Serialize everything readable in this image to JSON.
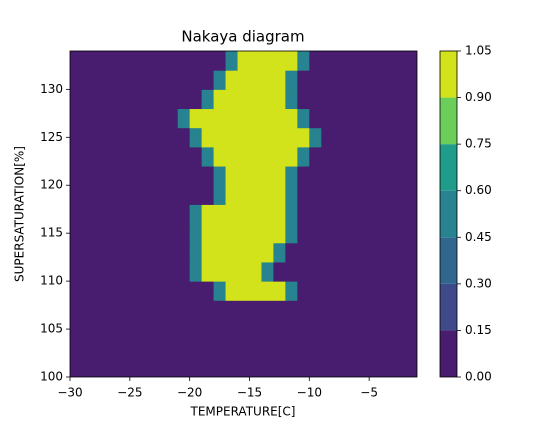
{
  "chart_data": {
    "type": "contour",
    "title": "Nakaya diagram",
    "x_label": "TEMPERATURE[C]",
    "y_label": "SUPERSATURATION[%]",
    "xlim": [
      -30,
      -1
    ],
    "ylim": [
      100,
      134
    ],
    "xticks": [
      {
        "value": -30,
        "label": "−30"
      },
      {
        "value": -25,
        "label": "−25"
      },
      {
        "value": -20,
        "label": "−20"
      },
      {
        "value": -15,
        "label": "−15"
      },
      {
        "value": -10,
        "label": "−10"
      },
      {
        "value": -5,
        "label": "−5"
      }
    ],
    "yticks": [
      100,
      105,
      110,
      115,
      120,
      125,
      130
    ],
    "x": [
      -29.5,
      -28.5,
      -27.5,
      -26.5,
      -25.5,
      -24.5,
      -23.5,
      -22.5,
      -21.5,
      -20.5,
      -19.5,
      -18.5,
      -17.5,
      -16.5,
      -15.5,
      -14.5,
      -13.5,
      -12.5,
      -11.5,
      -10.5,
      -9.5,
      -8.5,
      -7.5,
      -6.5,
      -5.5,
      -4.5,
      -3.5,
      -2.5,
      -1.5
    ],
    "y": [
      101,
      103,
      105,
      107,
      109,
      111,
      113,
      115,
      117,
      119,
      121,
      123,
      125,
      127,
      129,
      131,
      133
    ],
    "z": [
      [
        0,
        0,
        0,
        0,
        0,
        0,
        0,
        0,
        0,
        0,
        0,
        0,
        0,
        0,
        0,
        0,
        0,
        0,
        0,
        0,
        0,
        0,
        0,
        0,
        0,
        0,
        0,
        0,
        0
      ],
      [
        0,
        0,
        0,
        0,
        0,
        0,
        0,
        0,
        0,
        0,
        0,
        0,
        0,
        0,
        0,
        0,
        0,
        0,
        0,
        0,
        0,
        0,
        0,
        0,
        0,
        0,
        0,
        0,
        0
      ],
      [
        0,
        0,
        0,
        0,
        0,
        0,
        0,
        0,
        0,
        0,
        0,
        0,
        0,
        0,
        0,
        0,
        0,
        0,
        0,
        0,
        0,
        0,
        0,
        0,
        0,
        0,
        0,
        0,
        0
      ],
      [
        0,
        0,
        0,
        0,
        0,
        0,
        0,
        0,
        0,
        0,
        0,
        0,
        0,
        0,
        0,
        0,
        0,
        0,
        0,
        0,
        0,
        0,
        0,
        0,
        0,
        0,
        0,
        0,
        0
      ],
      [
        0,
        0,
        0,
        0,
        0,
        0,
        0,
        0,
        0,
        0,
        0,
        0,
        0.5,
        1,
        1,
        1,
        1,
        1,
        0.5,
        0,
        0,
        0,
        0,
        0,
        0,
        0,
        0,
        0,
        0
      ],
      [
        0,
        0,
        0,
        0,
        0,
        0,
        0,
        0,
        0,
        0,
        0.5,
        1,
        1,
        1,
        1,
        1,
        0.5,
        0,
        0,
        0,
        0,
        0,
        0,
        0,
        0,
        0,
        0,
        0,
        0
      ],
      [
        0,
        0,
        0,
        0,
        0,
        0,
        0,
        0,
        0,
        0,
        0.5,
        1,
        1,
        1,
        1,
        1,
        1,
        0.5,
        0,
        0,
        0,
        0,
        0,
        0,
        0,
        0,
        0,
        0,
        0
      ],
      [
        0,
        0,
        0,
        0,
        0,
        0,
        0,
        0,
        0,
        0,
        0.5,
        1,
        1,
        1,
        1,
        1,
        1,
        1,
        0.5,
        0,
        0,
        0,
        0,
        0,
        0,
        0,
        0,
        0,
        0
      ],
      [
        0,
        0,
        0,
        0,
        0,
        0,
        0,
        0,
        0,
        0,
        0.5,
        1,
        1,
        1,
        1,
        1,
        1,
        1,
        0.5,
        0,
        0,
        0,
        0,
        0,
        0,
        0,
        0,
        0,
        0
      ],
      [
        0,
        0,
        0,
        0,
        0,
        0,
        0,
        0,
        0,
        0,
        0,
        0,
        0.5,
        1,
        1,
        1,
        1,
        1,
        0.5,
        0,
        0,
        0,
        0,
        0,
        0,
        0,
        0,
        0,
        0
      ],
      [
        0,
        0,
        0,
        0,
        0,
        0,
        0,
        0,
        0,
        0,
        0,
        0,
        0.5,
        1,
        1,
        1,
        1,
        1,
        0.5,
        0,
        0,
        0,
        0,
        0,
        0,
        0,
        0,
        0,
        0
      ],
      [
        0,
        0,
        0,
        0,
        0,
        0,
        0,
        0,
        0,
        0,
        0,
        0.5,
        1,
        1,
        1,
        1,
        1,
        1,
        1,
        0.5,
        0,
        0,
        0,
        0,
        0,
        0,
        0,
        0,
        0
      ],
      [
        0,
        0,
        0,
        0,
        0,
        0,
        0,
        0,
        0,
        0,
        0.5,
        1,
        1,
        1,
        1,
        1,
        1,
        1,
        1,
        1,
        0.5,
        0,
        0,
        0,
        0,
        0,
        0,
        0,
        0
      ],
      [
        0,
        0,
        0,
        0,
        0,
        0,
        0,
        0,
        0,
        0.5,
        1,
        1,
        1,
        1,
        1,
        1,
        1,
        1,
        1,
        0.5,
        0,
        0,
        0,
        0,
        0,
        0,
        0,
        0,
        0
      ],
      [
        0,
        0,
        0,
        0,
        0,
        0,
        0,
        0,
        0,
        0,
        0,
        0.5,
        1,
        1,
        1,
        1,
        1,
        1,
        0.5,
        0,
        0,
        0,
        0,
        0,
        0,
        0,
        0,
        0,
        0
      ],
      [
        0,
        0,
        0,
        0,
        0,
        0,
        0,
        0,
        0,
        0,
        0,
        0,
        0.5,
        1,
        1,
        1,
        1,
        1,
        0.5,
        0,
        0,
        0,
        0,
        0,
        0,
        0,
        0,
        0,
        0
      ],
      [
        0,
        0,
        0,
        0,
        0,
        0,
        0,
        0,
        0,
        0,
        0,
        0,
        0,
        0.5,
        1,
        1,
        1,
        1,
        1,
        0.5,
        0,
        0,
        0,
        0,
        0,
        0,
        0,
        0,
        0
      ]
    ],
    "colorbar": {
      "ticks": [
        {
          "value": 0,
          "label": "0.00"
        },
        {
          "value": 0.15,
          "label": "0.15"
        },
        {
          "value": 0.3,
          "label": "0.30"
        },
        {
          "value": 0.45,
          "label": "0.45"
        },
        {
          "value": 0.6,
          "label": "0.60"
        },
        {
          "value": 0.75,
          "label": "0.75"
        },
        {
          "value": 0.9,
          "label": "0.90"
        },
        {
          "value": 1.05,
          "label": "1.05"
        }
      ],
      "colors": [
        "#481c6e",
        "#3f4a8a",
        "#31678e",
        "#26838f",
        "#1f9d8a",
        "#6cce5a",
        "#d2e21b"
      ]
    }
  }
}
